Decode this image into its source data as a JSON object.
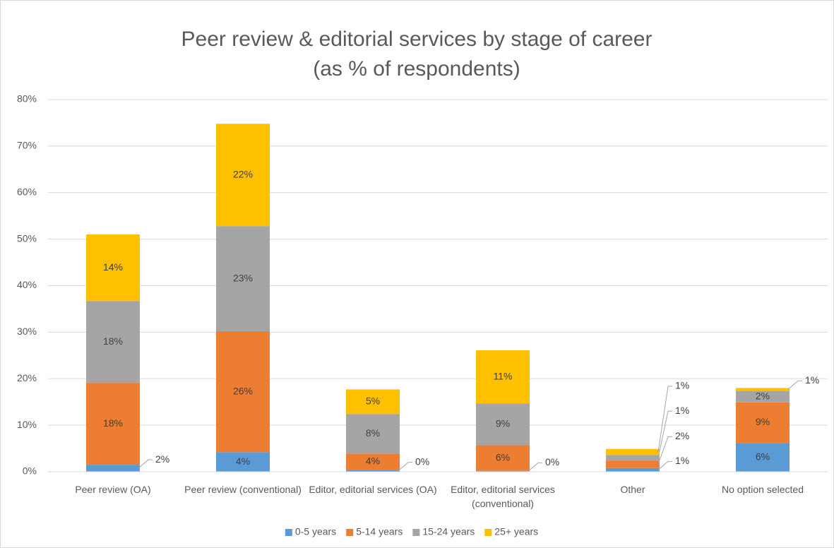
{
  "chart_data": {
    "type": "stacked_bar",
    "title": "Peer review & editorial services by stage of career",
    "subtitle": "(as % of respondents)",
    "categories": [
      "Peer review (OA)",
      "Peer review (conventional)",
      "Editor, editorial services (OA)",
      "Editor, editorial services (conventional)",
      "Other",
      "No option selected"
    ],
    "series": [
      {
        "name": "0-5 years",
        "color": "#5b9bd5",
        "values": [
          1.5,
          4.2,
          0.4,
          0.2,
          0.8,
          6.2
        ],
        "value_labels": [
          "2%",
          "4%",
          "0%",
          "0%",
          "1%",
          "6%"
        ]
      },
      {
        "name": "5-14 years",
        "color": "#ed7d31",
        "values": [
          17.6,
          26.0,
          3.5,
          5.5,
          1.6,
          8.7
        ],
        "value_labels": [
          "18%",
          "26%",
          "4%",
          "6%",
          "2%",
          "9%"
        ]
      },
      {
        "name": "15-24 years",
        "color": "#a5a5a5",
        "values": [
          17.6,
          22.6,
          8.5,
          9.0,
          1.2,
          2.5
        ],
        "value_labels": [
          "18%",
          "23%",
          "8%",
          "9%",
          "1%",
          "2%"
        ]
      },
      {
        "name": "25+ years",
        "color": "#ffc000",
        "values": [
          14.3,
          22.0,
          5.3,
          11.4,
          1.3,
          0.6
        ],
        "value_labels": [
          "14%",
          "22%",
          "5%",
          "11%",
          "1%",
          "1%"
        ]
      }
    ],
    "ylim": [
      0,
      80
    ],
    "yticks": [
      {
        "value": 0,
        "label": "0%"
      },
      {
        "value": 10,
        "label": "10%"
      },
      {
        "value": 20,
        "label": "20%"
      },
      {
        "value": 30,
        "label": "30%"
      },
      {
        "value": 40,
        "label": "40%"
      },
      {
        "value": 50,
        "label": "50%"
      },
      {
        "value": 60,
        "label": "60%"
      },
      {
        "value": 70,
        "label": "70%"
      },
      {
        "value": 80,
        "label": "80%"
      }
    ],
    "grid": true,
    "legend": "bottom"
  }
}
